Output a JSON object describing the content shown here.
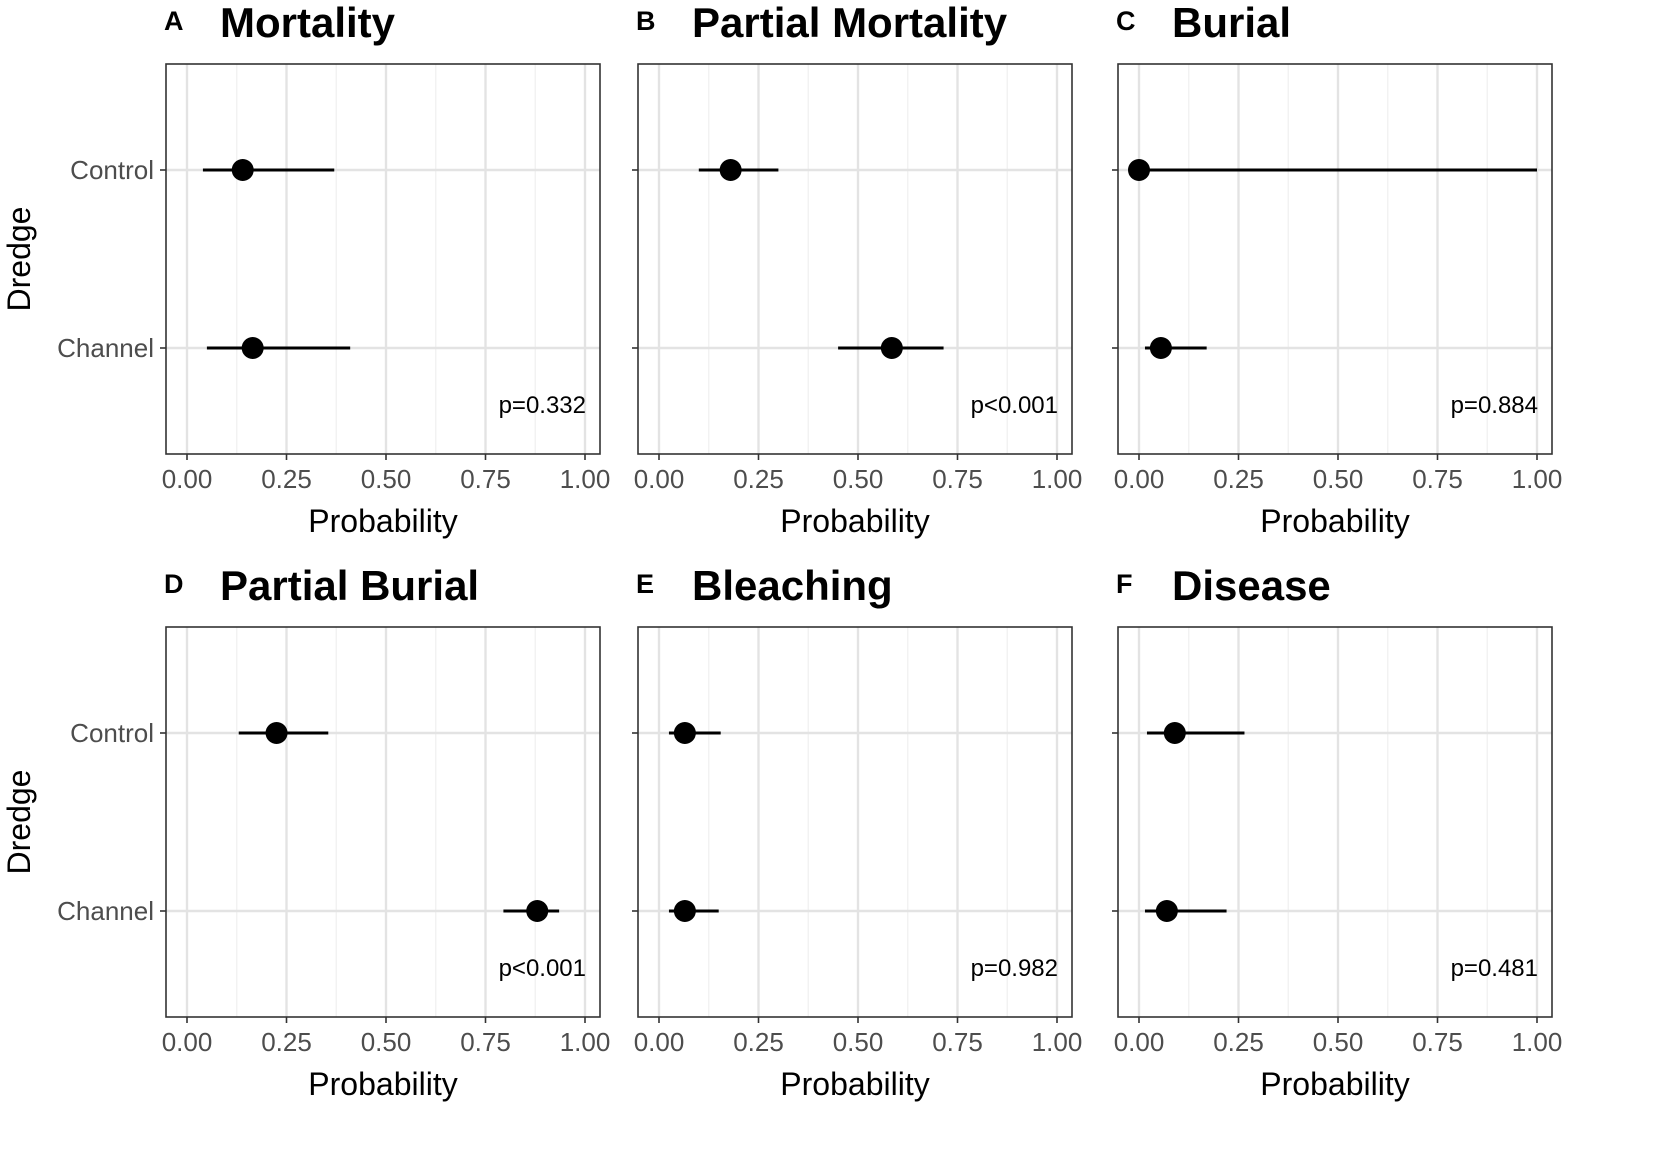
{
  "chart_data": [
    {
      "type": "scatter",
      "letter": "A",
      "title": "Mortality",
      "xlabel": "Probability",
      "ylabel": "Dredge",
      "xlim": [
        0,
        1
      ],
      "xticks": [
        "0.00",
        "0.25",
        "0.50",
        "0.75",
        "1.00"
      ],
      "categories": [
        "Control",
        "Channel"
      ],
      "points": [
        {
          "category": "Control",
          "estimate": 0.14,
          "lower": 0.04,
          "upper": 0.37
        },
        {
          "category": "Channel",
          "estimate": 0.165,
          "lower": 0.05,
          "upper": 0.41
        }
      ],
      "annotation": "p=0.332"
    },
    {
      "type": "scatter",
      "letter": "B",
      "title": "Partial Mortality",
      "xlabel": "Probability",
      "ylabel": "",
      "xlim": [
        0,
        1
      ],
      "xticks": [
        "0.00",
        "0.25",
        "0.50",
        "0.75",
        "1.00"
      ],
      "categories": [
        "Control",
        "Channel"
      ],
      "points": [
        {
          "category": "Control",
          "estimate": 0.18,
          "lower": 0.1,
          "upper": 0.3
        },
        {
          "category": "Channel",
          "estimate": 0.585,
          "lower": 0.45,
          "upper": 0.715
        }
      ],
      "annotation": "p<0.001"
    },
    {
      "type": "scatter",
      "letter": "C",
      "title": "Burial",
      "xlabel": "Probability",
      "ylabel": "",
      "xlim": [
        0,
        1
      ],
      "xticks": [
        "0.00",
        "0.25",
        "0.50",
        "0.75",
        "1.00"
      ],
      "categories": [
        "Control",
        "Channel"
      ],
      "points": [
        {
          "category": "Control",
          "estimate": 0.0,
          "lower": 0.0,
          "upper": 1.0
        },
        {
          "category": "Channel",
          "estimate": 0.055,
          "lower": 0.015,
          "upper": 0.17
        }
      ],
      "annotation": "p=0.884"
    },
    {
      "type": "scatter",
      "letter": "D",
      "title": "Partial Burial",
      "xlabel": "Probability",
      "ylabel": "Dredge",
      "xlim": [
        0,
        1
      ],
      "xticks": [
        "0.00",
        "0.25",
        "0.50",
        "0.75",
        "1.00"
      ],
      "categories": [
        "Control",
        "Channel"
      ],
      "points": [
        {
          "category": "Control",
          "estimate": 0.225,
          "lower": 0.13,
          "upper": 0.355
        },
        {
          "category": "Channel",
          "estimate": 0.88,
          "lower": 0.795,
          "upper": 0.935
        }
      ],
      "annotation": "p<0.001"
    },
    {
      "type": "scatter",
      "letter": "E",
      "title": "Bleaching",
      "xlabel": "Probability",
      "ylabel": "",
      "xlim": [
        0,
        1
      ],
      "xticks": [
        "0.00",
        "0.25",
        "0.50",
        "0.75",
        "1.00"
      ],
      "categories": [
        "Control",
        "Channel"
      ],
      "points": [
        {
          "category": "Control",
          "estimate": 0.065,
          "lower": 0.025,
          "upper": 0.155
        },
        {
          "category": "Channel",
          "estimate": 0.065,
          "lower": 0.025,
          "upper": 0.15
        }
      ],
      "annotation": "p=0.982"
    },
    {
      "type": "scatter",
      "letter": "F",
      "title": "Disease",
      "xlabel": "Probability",
      "ylabel": "",
      "xlim": [
        0,
        1
      ],
      "xticks": [
        "0.00",
        "0.25",
        "0.50",
        "0.75",
        "1.00"
      ],
      "categories": [
        "Control",
        "Channel"
      ],
      "points": [
        {
          "category": "Control",
          "estimate": 0.09,
          "lower": 0.02,
          "upper": 0.265
        },
        {
          "category": "Channel",
          "estimate": 0.07,
          "lower": 0.015,
          "upper": 0.22
        }
      ],
      "annotation": "p=0.481"
    }
  ]
}
